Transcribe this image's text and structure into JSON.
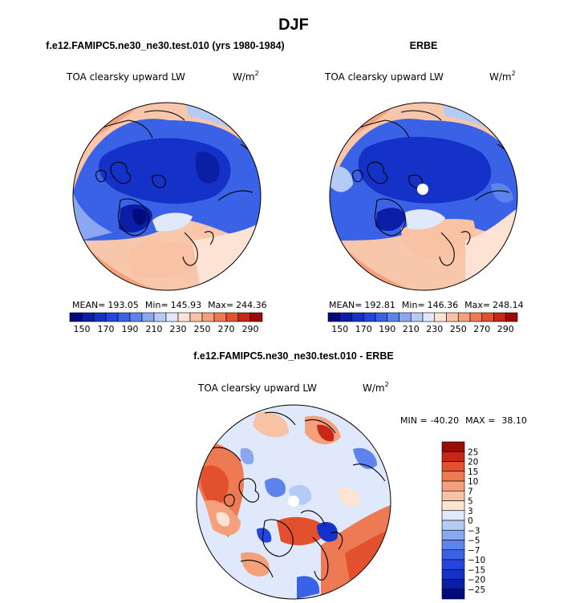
{
  "page": {
    "title": "DJF"
  },
  "panels": [
    {
      "title": "f.e12.FAMIPC5.ne30_ne30.test.010 (yrs 1980-1984)",
      "field_label": "TOA clearsky upward LW",
      "units_base": "W/m",
      "units_exp": "2",
      "stats": {
        "mean_label": "MEAN=",
        "mean": "193.05",
        "min_label": "Min=",
        "min": "145.93",
        "max_label": "Max=",
        "max": "244.36"
      }
    },
    {
      "title": "ERBE",
      "field_label": "TOA clearsky upward LW",
      "units_base": "W/m",
      "units_exp": "2",
      "stats": {
        "mean_label": "MEAN=",
        "mean": "192.81",
        "min_label": "Min=",
        "min": "146.36",
        "max_label": "Max=",
        "max": "248.14"
      }
    },
    {
      "title": "f.e12.FAMIPC5.ne30_ne30.test.010 - ERBE",
      "field_label": "TOA clearsky upward LW",
      "units_base": "W/m",
      "units_exp": "2",
      "stats": {
        "min_label": "MIN =",
        "min": "-40.20",
        "max_label": "MAX =",
        "max": "38.10"
      }
    }
  ],
  "chart_data": [
    {
      "type": "heatmap",
      "title": "f.e12.FAMIPC5.ne30_ne30.test.010 (yrs 1980-1984)",
      "projection": "polar-stereographic-north",
      "colorbar_tick_labels": [
        "150",
        "170",
        "190",
        "210",
        "230",
        "250",
        "270",
        "290"
      ],
      "stats": {
        "mean": 193.05,
        "min": 145.93,
        "max": 244.36
      }
    },
    {
      "type": "heatmap",
      "title": "ERBE",
      "projection": "polar-stereographic-north",
      "colorbar_tick_labels": [
        "150",
        "170",
        "190",
        "210",
        "230",
        "250",
        "270",
        "290"
      ],
      "stats": {
        "mean": 192.81,
        "min": 146.36,
        "max": 248.14
      }
    },
    {
      "type": "heatmap",
      "title": "f.e12.FAMIPC5.ne30_ne30.test.010 - ERBE",
      "projection": "polar-stereographic-north",
      "colorbar_tick_labels": [
        "25",
        "20",
        "15",
        "10",
        "7",
        "5",
        "3",
        "0",
        "−3",
        "−5",
        "−7",
        "−10",
        "−15",
        "−20",
        "−25"
      ],
      "stats": {
        "min": -40.2,
        "max": 38.1
      }
    }
  ],
  "colors": {
    "abs_scale": [
      "#000a7d",
      "#0a1ea6",
      "#1532c8",
      "#2347de",
      "#3a62e6",
      "#5d84ec",
      "#8aa8f1",
      "#b4cbf6",
      "#dfe9fb",
      "#fde3d4",
      "#f9c2a5",
      "#f4a07b",
      "#ed7a52",
      "#e2502e",
      "#c92716",
      "#9a0c07"
    ],
    "diff_scale": [
      "#000a7d",
      "#0a1ea6",
      "#1532c8",
      "#2347de",
      "#3a62e6",
      "#5d84ec",
      "#8aa8f1",
      "#b4cbf6",
      "#dfe9fb",
      "#fde3d4",
      "#f9c2a5",
      "#f4a07b",
      "#ed7a52",
      "#e2502e",
      "#c92716",
      "#9a0c07"
    ]
  }
}
